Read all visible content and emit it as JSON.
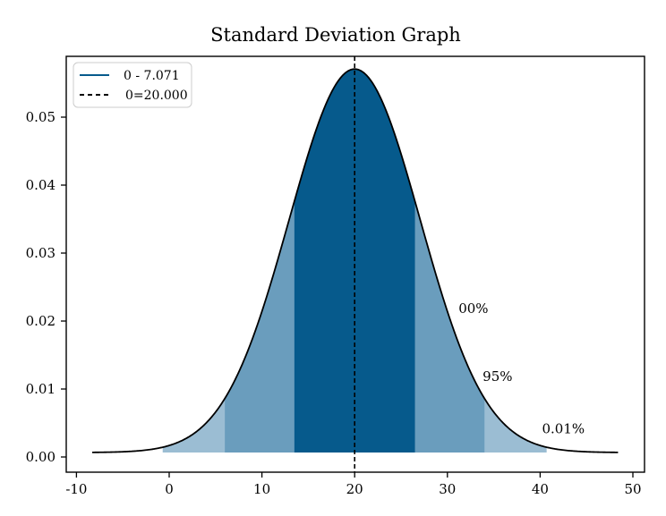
{
  "chart_data": {
    "type": "area",
    "title": "Standard Deviation Graph",
    "xlabel": "",
    "ylabel": "",
    "xlim": [
      -11,
      51
    ],
    "ylim": [
      -0.0023,
      0.0588
    ],
    "x_ticks": [
      -10,
      0,
      10,
      20,
      30,
      40,
      50
    ],
    "y_ticks": [
      "0.00",
      "0.01",
      "0.02",
      "0.03",
      "0.04",
      "0.05"
    ],
    "grid": false,
    "distribution": {
      "mean": 20.0,
      "std": 7.071,
      "x_range": [
        -8.3,
        48.5
      ]
    },
    "bands": [
      {
        "from": -0.7,
        "to": 40.7,
        "color": "#9bbdd3",
        "label": "0.01%"
      },
      {
        "from": 6.0,
        "to": 34.0,
        "color": "#6a9dbd",
        "label": "95%"
      },
      {
        "from": 13.5,
        "to": 26.5,
        "color": "#065a8c",
        "label": "00%"
      }
    ],
    "band_label_positions": [
      [
        40.2,
        0.0028
      ],
      [
        33.8,
        0.0105
      ],
      [
        31.2,
        0.0205
      ]
    ],
    "mean_line": {
      "x": 20.0,
      "style": "dashed",
      "color": "#000000"
    },
    "legend": {
      "placement": "top-left",
      "entries": [
        {
          "label": "0 - 7.071",
          "style": "solid",
          "color": "#065a8c"
        },
        {
          "label": "0=20.000",
          "style": "dashed",
          "color": "#000000"
        }
      ]
    }
  }
}
